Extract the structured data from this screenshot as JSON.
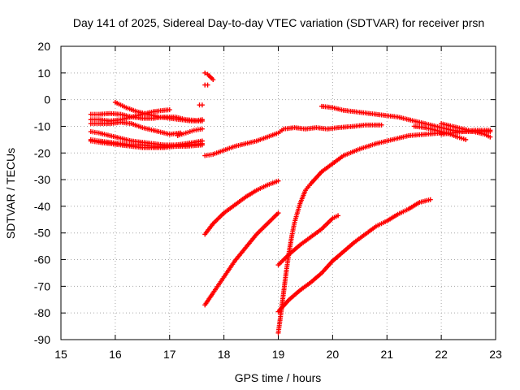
{
  "chart_data": {
    "type": "scatter",
    "title": "Day 141 of 2025, Sidereal Day-to-day VTEC variation (SDTVAR) for receiver prsn",
    "xlabel": "GPS time / hours",
    "ylabel": "SDTVAR / TECUs",
    "xlim": [
      15,
      23
    ],
    "ylim": [
      -90,
      20
    ],
    "xticks": [
      "15",
      "16",
      "17",
      "18",
      "19",
      "20",
      "21",
      "22",
      "23"
    ],
    "yticks": [
      "-90",
      "-80",
      "-70",
      "-60",
      "-50",
      "-40",
      "-30",
      "-20",
      "-10",
      "0",
      "10",
      "20"
    ],
    "grid": true,
    "marker": "+",
    "color": "#ff0000",
    "series": [
      {
        "x": [
          15.55,
          15.7,
          15.9,
          16.1,
          16.3,
          16.5,
          16.7,
          16.9,
          17.1,
          17.3,
          17.5,
          17.6
        ],
        "y": [
          -5.5,
          -5.5,
          -5.2,
          -5.5,
          -6.5,
          -7.0,
          -7.0,
          -6.5,
          -6.5,
          -7.5,
          -7.8,
          -7.5
        ]
      },
      {
        "x": [
          15.55,
          15.7,
          15.9,
          16.1,
          16.3,
          16.5,
          16.7,
          16.9,
          17.0
        ],
        "y": [
          -7.5,
          -7.5,
          -8.0,
          -7.5,
          -6.5,
          -5.5,
          -4.5,
          -4.0,
          -3.8
        ]
      },
      {
        "x": [
          15.55,
          15.7,
          15.9,
          16.1,
          16.3,
          16.5,
          16.7,
          16.9,
          17.0,
          17.2
        ],
        "y": [
          -9.0,
          -9.0,
          -9.0,
          -8.5,
          -9.0,
          -10.5,
          -11.5,
          -12.5,
          -13.0,
          -12.5
        ]
      },
      {
        "x": [
          16.0,
          16.2,
          16.4,
          16.6,
          16.8,
          17.0,
          17.2,
          17.4,
          17.6
        ],
        "y": [
          -1.0,
          -3.0,
          -4.5,
          -5.5,
          -6.5,
          -7.0,
          -7.5,
          -8.0,
          -8.0
        ]
      },
      {
        "x": [
          15.55,
          15.7,
          15.9,
          16.1,
          16.3,
          16.5,
          16.7,
          16.9,
          17.1,
          17.3,
          17.6
        ],
        "y": [
          -12.0,
          -12.5,
          -13.5,
          -14.5,
          -15.5,
          -16.0,
          -16.5,
          -17.0,
          -17.0,
          -16.5,
          -15.5
        ]
      },
      {
        "x": [
          15.55,
          15.7,
          15.9,
          16.1,
          16.3,
          16.5,
          16.7,
          16.9,
          17.1,
          17.3,
          17.6
        ],
        "y": [
          -15.0,
          -15.5,
          -16.0,
          -16.5,
          -17.0,
          -17.0,
          -17.5,
          -17.5,
          -17.5,
          -17.0,
          -16.5
        ]
      },
      {
        "x": [
          15.55,
          15.7,
          15.9,
          16.1,
          16.3,
          16.5,
          16.7,
          16.9,
          17.1,
          17.3,
          17.6
        ],
        "y": [
          -15.5,
          -16.0,
          -16.5,
          -17.0,
          -17.5,
          -18.0,
          -18.0,
          -18.0,
          -17.5,
          -17.5,
          -17.0
        ]
      },
      {
        "x": [
          17.15,
          17.3,
          17.45,
          17.6
        ],
        "y": [
          -13.5,
          -12.5,
          -11.5,
          -11.0
        ]
      },
      {
        "x": [
          17.55,
          17.6
        ],
        "y": [
          -2.0,
          -2.0
        ]
      },
      {
        "x": [
          17.65,
          17.7,
          17.75,
          17.8
        ],
        "y": [
          10.0,
          9.5,
          8.5,
          7.5
        ]
      },
      {
        "x": [
          17.65,
          17.7
        ],
        "y": [
          5.5,
          5.5
        ]
      },
      {
        "x": [
          17.65,
          17.8,
          18.0,
          18.2,
          18.4,
          18.6,
          18.8,
          19.0,
          19.1,
          19.3,
          19.5,
          19.7,
          19.9,
          20.1,
          20.4,
          20.6,
          20.9
        ],
        "y": [
          -21.0,
          -20.5,
          -19.0,
          -17.5,
          -16.5,
          -15.5,
          -14.0,
          -12.5,
          -11.0,
          -10.5,
          -11.0,
          -10.5,
          -11.0,
          -10.5,
          -10.0,
          -9.5,
          -9.5
        ]
      },
      {
        "x": [
          17.65,
          17.8,
          18.0,
          18.2,
          18.4,
          18.6,
          18.8,
          19.0
        ],
        "y": [
          -50.5,
          -46.5,
          -42.5,
          -39.5,
          -36.5,
          -34.0,
          -32.0,
          -30.5
        ]
      },
      {
        "x": [
          17.65,
          17.8,
          18.0,
          18.2,
          18.4,
          18.6,
          18.8,
          19.0
        ],
        "y": [
          -77.0,
          -72.5,
          -66.5,
          -60.5,
          -55.5,
          -50.5,
          -46.5,
          -42.5
        ]
      },
      {
        "x": [
          19.0,
          19.05,
          19.1,
          19.15,
          19.2,
          19.25,
          19.3,
          19.4,
          19.5,
          19.6,
          19.8,
          20.0,
          20.2,
          20.5,
          20.8,
          21.1,
          21.4,
          21.7,
          22.0
        ],
        "y": [
          -87.5,
          -80.0,
          -72.0,
          -64.0,
          -57.0,
          -51.0,
          -46.0,
          -39.0,
          -34.0,
          -31.5,
          -27.0,
          -24.0,
          -21.0,
          -18.5,
          -16.5,
          -15.0,
          -13.5,
          -13.0,
          -12.5
        ]
      },
      {
        "x": [
          19.0,
          19.2,
          19.4,
          19.6,
          19.8,
          20.0,
          20.1
        ],
        "y": [
          -62.0,
          -58.0,
          -54.5,
          -51.5,
          -48.5,
          -44.5,
          -43.5
        ]
      },
      {
        "x": [
          19.0,
          19.2,
          19.4,
          19.6,
          19.8,
          20.0,
          20.2,
          20.4,
          20.6,
          20.8,
          21.0,
          21.2,
          21.4,
          21.6,
          21.8
        ],
        "y": [
          -79.5,
          -75.0,
          -71.5,
          -68.5,
          -65.0,
          -60.5,
          -57.0,
          -53.5,
          -50.5,
          -47.5,
          -45.5,
          -43.0,
          -41.0,
          -38.5,
          -37.5
        ]
      },
      {
        "x": [
          19.8,
          20.0,
          20.2,
          20.4,
          20.6,
          20.8,
          21.0,
          21.2,
          21.4,
          21.6,
          21.8,
          22.0,
          22.2,
          22.4,
          22.6,
          22.9
        ],
        "y": [
          -2.5,
          -3.0,
          -4.0,
          -4.5,
          -5.0,
          -5.5,
          -6.0,
          -6.5,
          -7.5,
          -8.5,
          -9.5,
          -10.5,
          -11.5,
          -12.0,
          -12.0,
          -12.0
        ]
      },
      {
        "x": [
          21.5,
          21.7,
          21.9,
          22.1,
          22.3,
          22.45
        ],
        "y": [
          -10.0,
          -10.5,
          -11.5,
          -12.5,
          -14.0,
          -15.0
        ]
      },
      {
        "x": [
          22.0,
          22.2,
          22.4,
          22.6,
          22.8,
          22.9
        ],
        "y": [
          -9.0,
          -10.0,
          -11.0,
          -12.0,
          -13.0,
          -14.0
        ]
      },
      {
        "x": [
          22.0,
          22.2,
          22.4,
          22.6,
          22.8,
          22.9
        ],
        "y": [
          -13.0,
          -12.5,
          -12.0,
          -11.5,
          -11.5,
          -11.5
        ]
      }
    ]
  }
}
